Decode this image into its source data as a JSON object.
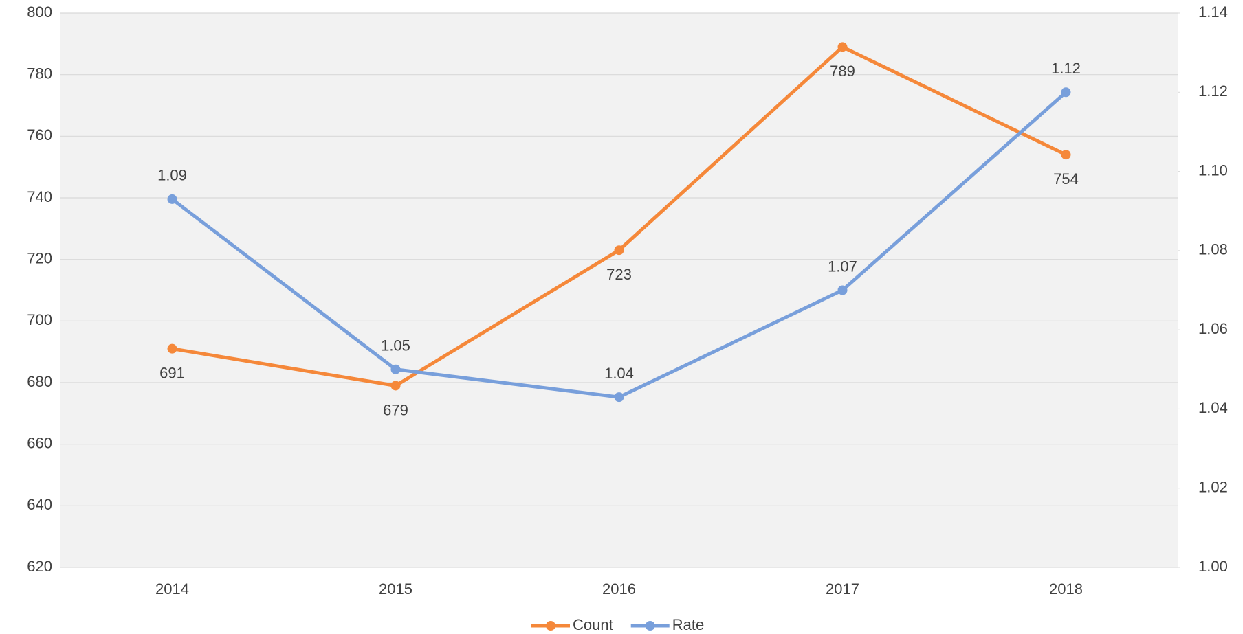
{
  "chart_data": {
    "type": "line",
    "categories": [
      "2014",
      "2015",
      "2016",
      "2017",
      "2018"
    ],
    "series": [
      {
        "name": "Count",
        "color": "#f5883a",
        "values": [
          691,
          679,
          723,
          789,
          754
        ]
      },
      {
        "name": "Rate",
        "color": "#789fdb",
        "axis": "y2",
        "values": [
          1.093,
          1.05,
          1.043,
          1.07,
          1.12
        ],
        "value_labels": [
          "1.09",
          "1.05",
          "1.04",
          "1.07",
          "1.12"
        ]
      }
    ],
    "ylim": [
      620,
      800
    ],
    "yticks": [
      620,
      640,
      660,
      680,
      700,
      720,
      740,
      760,
      780,
      800
    ],
    "y2lim": [
      1,
      1.14
    ],
    "y2ticks": [
      {
        "value": 1,
        "label": "1.00"
      },
      1.02,
      1.04,
      1.06,
      1.08,
      {
        "value": 1.1,
        "label": "1.10"
      },
      1.12,
      1.14
    ],
    "grid": true,
    "legend": "bottom"
  }
}
